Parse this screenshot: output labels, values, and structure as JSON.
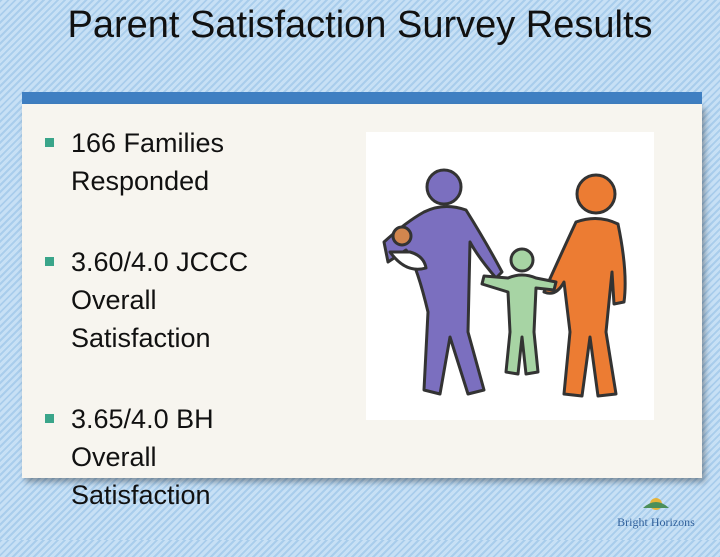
{
  "header": {
    "title": "Parent Satisfaction Survey Results"
  },
  "bullets": [
    "166 Families Responded",
    "3.60/4.0 JCCC Overall Satisfaction",
    "3.65/4.0 BH Overall Satisfaction"
  ],
  "logo": {
    "name": "Bright Horizons"
  }
}
